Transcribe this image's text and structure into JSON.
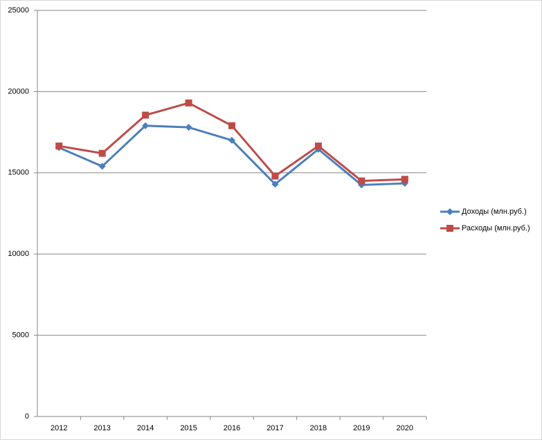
{
  "chart_data": {
    "type": "line",
    "categories": [
      "2012",
      "2013",
      "2014",
      "2015",
      "2016",
      "2017",
      "2018",
      "2019",
      "2020"
    ],
    "series": [
      {
        "name": "Доходы (млн.руб.)",
        "color": "#4a7ebb",
        "marker": "diamond",
        "values": [
          16550,
          15400,
          17900,
          17800,
          17000,
          14300,
          16450,
          14250,
          14350
        ]
      },
      {
        "name": "Расходы (млн.руб.)",
        "color": "#be4b48",
        "marker": "square",
        "values": [
          16650,
          16200,
          18550,
          19300,
          17900,
          14800,
          16650,
          14500,
          14600
        ]
      }
    ],
    "ylim": [
      0,
      25000
    ],
    "yticks": [
      0,
      5000,
      10000,
      15000,
      20000,
      25000
    ],
    "grid": true,
    "legend": "right"
  }
}
